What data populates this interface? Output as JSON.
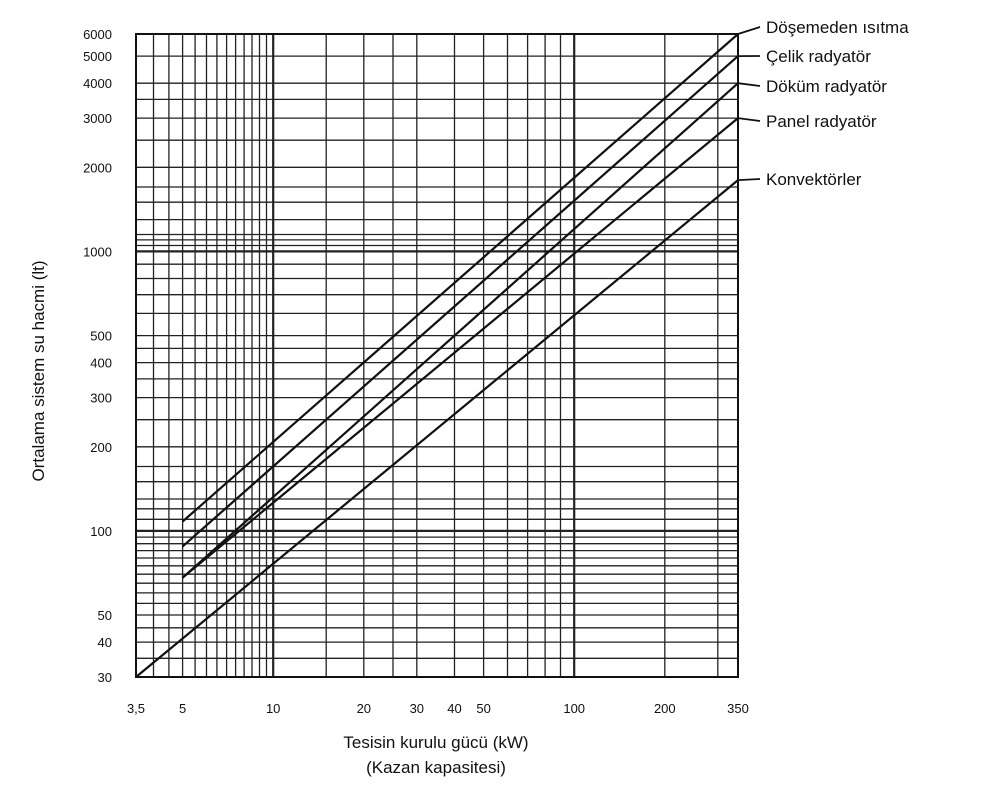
{
  "chart_data": {
    "type": "line",
    "title": "",
    "xlabel": "Tesisin kurulu gücü (kW)",
    "xlabel_sub": "(Kazan kapasitesi)",
    "ylabel": "Ortalama sistem su hacmi (lt)",
    "x_scale": "log",
    "y_scale": "log",
    "xlim": [
      3.5,
      350
    ],
    "ylim": [
      30,
      6000
    ],
    "grid": true,
    "x_ticks": [
      {
        "value": 3.5,
        "label": "3,5"
      },
      {
        "value": 5,
        "label": "5"
      },
      {
        "value": 10,
        "label": "10"
      },
      {
        "value": 20,
        "label": "20"
      },
      {
        "value": 30,
        "label": "30"
      },
      {
        "value": 40,
        "label": "40"
      },
      {
        "value": 50,
        "label": "50"
      },
      {
        "value": 100,
        "label": "100"
      },
      {
        "value": 200,
        "label": "200"
      },
      {
        "value": 350,
        "label": "350"
      }
    ],
    "y_ticks": [
      {
        "value": 30,
        "label": "30"
      },
      {
        "value": 40,
        "label": "40"
      },
      {
        "value": 50,
        "label": "50"
      },
      {
        "value": 100,
        "label": "100"
      },
      {
        "value": 200,
        "label": "200"
      },
      {
        "value": 300,
        "label": "300"
      },
      {
        "value": 400,
        "label": "400"
      },
      {
        "value": 500,
        "label": "500"
      },
      {
        "value": 1000,
        "label": "1000"
      },
      {
        "value": 2000,
        "label": "2000"
      },
      {
        "value": 3000,
        "label": "3000"
      },
      {
        "value": 4000,
        "label": "4000"
      },
      {
        "value": 5000,
        "label": "5000"
      },
      {
        "value": 6000,
        "label": "6000"
      }
    ],
    "series": [
      {
        "name": "Döşemeden ısıtma",
        "x": [
          5,
          350
        ],
        "y": [
          108,
          6000
        ]
      },
      {
        "name": "Çelik radyatör",
        "x": [
          5,
          350
        ],
        "y": [
          88,
          5000
        ]
      },
      {
        "name": "Döküm radyatör",
        "x": [
          5,
          350
        ],
        "y": [
          68,
          4000
        ]
      },
      {
        "name": "Panel radyatör",
        "x": [
          5,
          350
        ],
        "y": [
          68,
          3000
        ]
      },
      {
        "name": "Konvektörler",
        "x": [
          3.5,
          350
        ],
        "y": [
          30,
          1800
        ]
      }
    ],
    "legend_placement": "right, labels at line ends"
  }
}
